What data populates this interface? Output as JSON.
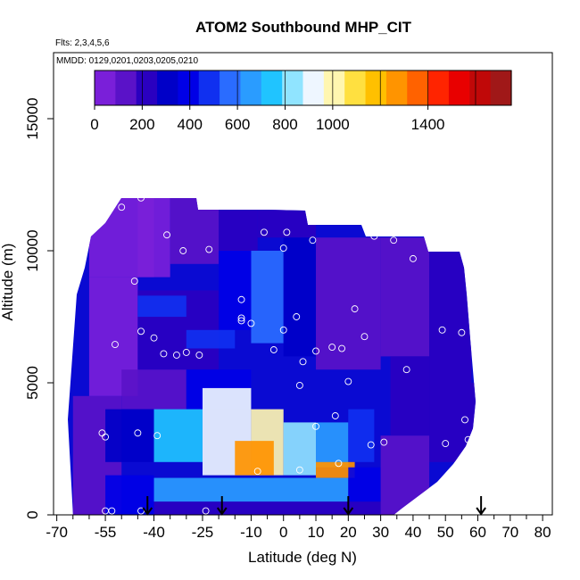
{
  "chart_data": {
    "type": "heatmap",
    "title": "ATOM2 Southbound MHP_CIT",
    "subtitle_flights": "Flts: 2,3,4,5,6",
    "subtitle_dates": "MMDD: 0129,0201,0203,0205,0210",
    "xlabel": "Latitude (deg N)",
    "ylabel": "Altitude (m)",
    "xlim": [
      -71,
      83
    ],
    "ylim": [
      0,
      17500
    ],
    "x_tick_labels": [
      "-70",
      "-55",
      "-40",
      "-25",
      "-10",
      "0",
      "10",
      "20",
      "30",
      "40",
      "50",
      "60",
      "70",
      "80"
    ],
    "x_tick_values": [
      -70,
      -55,
      -40,
      -25,
      -10,
      0,
      10,
      20,
      30,
      40,
      50,
      60,
      70,
      80
    ],
    "x_minor_ticks": [
      -65,
      -60,
      -50,
      -45,
      -35,
      -30,
      -20,
      -15,
      -5,
      5,
      15,
      25,
      35,
      45,
      55,
      65,
      75
    ],
    "y_ticks": [
      0,
      5000,
      10000,
      15000
    ],
    "y_tick_labels": [
      "0",
      "5000",
      "10000",
      "15000"
    ],
    "colorbar": {
      "min": 0,
      "max": 1750,
      "ticks": [
        0,
        200,
        400,
        600,
        800,
        1000,
        1400
      ],
      "tick_labels": [
        "0",
        "200",
        "400",
        "600",
        "800",
        "1000",
        "1400"
      ],
      "dividers": [
        200,
        400,
        600,
        800,
        1000,
        1200,
        1400,
        1600
      ],
      "colors": [
        "#7a1fd9",
        "#5a12c8",
        "#2a00c0",
        "#0000c8",
        "#0000e6",
        "#1030f0",
        "#2a6cff",
        "#2a9cff",
        "#20c4ff",
        "#90e4ff",
        "#eef6ff",
        "#fff6b0",
        "#ffe040",
        "#ffc000",
        "#ff9400",
        "#ff6200",
        "#ff2400",
        "#e80000",
        "#c00808",
        "#a01818"
      ]
    },
    "arrow_latitudes": [
      -42,
      -19,
      20,
      61
    ],
    "grid": false,
    "cells": [
      {
        "lat": [
          -65,
          -50
        ],
        "alt": [
          0,
          4500
        ],
        "v": 120
      },
      {
        "lat": [
          -60,
          -45
        ],
        "alt": [
          4500,
          9000
        ],
        "v": 60
      },
      {
        "lat": [
          -60,
          -40
        ],
        "alt": [
          9000,
          12500
        ],
        "v": 20
      },
      {
        "lat": [
          -45,
          -35
        ],
        "alt": [
          9000,
          12500
        ],
        "v": 60
      },
      {
        "lat": [
          -35,
          -20
        ],
        "alt": [
          9500,
          12500
        ],
        "v": 110
      },
      {
        "lat": [
          -20,
          -8
        ],
        "alt": [
          10000,
          12500
        ],
        "v": 200
      },
      {
        "lat": [
          -8,
          10
        ],
        "alt": [
          10500,
          12000
        ],
        "v": 260
      },
      {
        "lat": [
          -10,
          0
        ],
        "alt": [
          6500,
          10000
        ],
        "v": 560
      },
      {
        "lat": [
          -20,
          -10
        ],
        "alt": [
          7000,
          10000
        ],
        "v": 350
      },
      {
        "lat": [
          0,
          10
        ],
        "alt": [
          6000,
          10500
        ],
        "v": 300
      },
      {
        "lat": [
          10,
          30
        ],
        "alt": [
          5500,
          10500
        ],
        "v": 150
      },
      {
        "lat": [
          30,
          45
        ],
        "alt": [
          6000,
          10500
        ],
        "v": 120
      },
      {
        "lat": [
          45,
          58
        ],
        "alt": [
          5000,
          10000
        ],
        "v": 180
      },
      {
        "lat": [
          45,
          60
        ],
        "alt": [
          2000,
          5000
        ],
        "v": 200
      },
      {
        "lat": [
          33,
          45
        ],
        "alt": [
          3000,
          6000
        ],
        "v": 240
      },
      {
        "lat": [
          -45,
          -20
        ],
        "alt": [
          5500,
          8500
        ],
        "v": 180
      },
      {
        "lat": [
          -45,
          -30
        ],
        "alt": [
          7500,
          8300
        ],
        "v": 480
      },
      {
        "lat": [
          -30,
          -15
        ],
        "alt": [
          6300,
          7000
        ],
        "v": 520
      },
      {
        "lat": [
          -50,
          -30
        ],
        "alt": [
          4000,
          5500
        ],
        "v": 150
      },
      {
        "lat": [
          -30,
          -10
        ],
        "alt": [
          4000,
          5500
        ],
        "v": 350
      },
      {
        "lat": [
          -55,
          -40
        ],
        "alt": [
          2000,
          4000
        ],
        "v": 320
      },
      {
        "lat": [
          -40,
          -25
        ],
        "alt": [
          2000,
          4000
        ],
        "v": 700
      },
      {
        "lat": [
          -25,
          -10
        ],
        "alt": [
          1500,
          4800
        ],
        "v": 900
      },
      {
        "lat": [
          -10,
          0
        ],
        "alt": [
          1500,
          4000
        ],
        "v": 1000
      },
      {
        "lat": [
          -15,
          -3
        ],
        "alt": [
          1500,
          2800
        ],
        "v": 1250
      },
      {
        "lat": [
          0,
          10
        ],
        "alt": [
          1500,
          3500
        ],
        "v": 850
      },
      {
        "lat": [
          10,
          20
        ],
        "alt": [
          1800,
          3500
        ],
        "v": 620
      },
      {
        "lat": [
          20,
          28
        ],
        "alt": [
          2000,
          4000
        ],
        "v": 450
      },
      {
        "lat": [
          10,
          22
        ],
        "alt": [
          1400,
          2000
        ],
        "v": 1300
      },
      {
        "lat": [
          -40,
          20
        ],
        "alt": [
          500,
          1400
        ],
        "v": 650
      },
      {
        "lat": [
          20,
          30
        ],
        "alt": [
          500,
          1800
        ],
        "v": 350
      },
      {
        "lat": [
          -55,
          -40
        ],
        "alt": [
          0,
          1500
        ],
        "v": 350
      },
      {
        "lat": [
          -40,
          30
        ],
        "alt": [
          0,
          500
        ],
        "v": 220
      },
      {
        "lat": [
          30,
          45
        ],
        "alt": [
          0,
          3000
        ],
        "v": 150
      }
    ],
    "observations": [
      {
        "lat": -50,
        "alt": 11650
      },
      {
        "lat": -44,
        "alt": 12000
      },
      {
        "lat": -63,
        "alt": 9800
      },
      {
        "lat": -46,
        "alt": 8850
      },
      {
        "lat": -36,
        "alt": 10600
      },
      {
        "lat": -31,
        "alt": 10000
      },
      {
        "lat": -23,
        "alt": 10050
      },
      {
        "lat": -13,
        "alt": 12000
      },
      {
        "lat": -6,
        "alt": 10700
      },
      {
        "lat": 1,
        "alt": 10700
      },
      {
        "lat": 0,
        "alt": 10100
      },
      {
        "lat": 9,
        "alt": 10400
      },
      {
        "lat": 28,
        "alt": 10550
      },
      {
        "lat": 34,
        "alt": 10400
      },
      {
        "lat": 40,
        "alt": 9700
      },
      {
        "lat": 46,
        "alt": 10550
      },
      {
        "lat": 59,
        "alt": 9600
      },
      {
        "lat": -13,
        "alt": 8150
      },
      {
        "lat": -13,
        "alt": 7450
      },
      {
        "lat": -13,
        "alt": 7350
      },
      {
        "lat": -10,
        "alt": 7250
      },
      {
        "lat": 4,
        "alt": 7500
      },
      {
        "lat": 22,
        "alt": 7800
      },
      {
        "lat": -44,
        "alt": 6950
      },
      {
        "lat": -40,
        "alt": 6700
      },
      {
        "lat": -52,
        "alt": 6450
      },
      {
        "lat": -37,
        "alt": 6100
      },
      {
        "lat": -33,
        "alt": 6050
      },
      {
        "lat": -30,
        "alt": 6150
      },
      {
        "lat": -26,
        "alt": 6050
      },
      {
        "lat": 0,
        "alt": 7000
      },
      {
        "lat": -3,
        "alt": 6250
      },
      {
        "lat": 6,
        "alt": 5800
      },
      {
        "lat": 10,
        "alt": 6200
      },
      {
        "lat": 15,
        "alt": 6350
      },
      {
        "lat": 18,
        "alt": 6300
      },
      {
        "lat": 25,
        "alt": 6750
      },
      {
        "lat": 49,
        "alt": 7000
      },
      {
        "lat": 55,
        "alt": 6900
      },
      {
        "lat": 38,
        "alt": 5500
      },
      {
        "lat": 20,
        "alt": 5050
      },
      {
        "lat": 5,
        "alt": 4900
      },
      {
        "lat": 16,
        "alt": 3750
      },
      {
        "lat": 10,
        "alt": 3350
      },
      {
        "lat": 56,
        "alt": 3600
      },
      {
        "lat": 61,
        "alt": 4300
      },
      {
        "lat": -70,
        "alt": 3400
      },
      {
        "lat": -56,
        "alt": 3100
      },
      {
        "lat": -55,
        "alt": 2950
      },
      {
        "lat": -45,
        "alt": 3100
      },
      {
        "lat": -39,
        "alt": 3000
      },
      {
        "lat": 31,
        "alt": 2750
      },
      {
        "lat": 27,
        "alt": 2650
      },
      {
        "lat": 50,
        "alt": 2700
      },
      {
        "lat": 57,
        "alt": 2850
      },
      {
        "lat": -8,
        "alt": 1650
      },
      {
        "lat": 5,
        "alt": 1700
      },
      {
        "lat": 17,
        "alt": 1950
      },
      {
        "lat": -55,
        "alt": 150
      },
      {
        "lat": -53,
        "alt": 150
      },
      {
        "lat": -44,
        "alt": 150
      },
      {
        "lat": -24,
        "alt": 150
      },
      {
        "lat": 38,
        "alt": 150
      }
    ]
  }
}
